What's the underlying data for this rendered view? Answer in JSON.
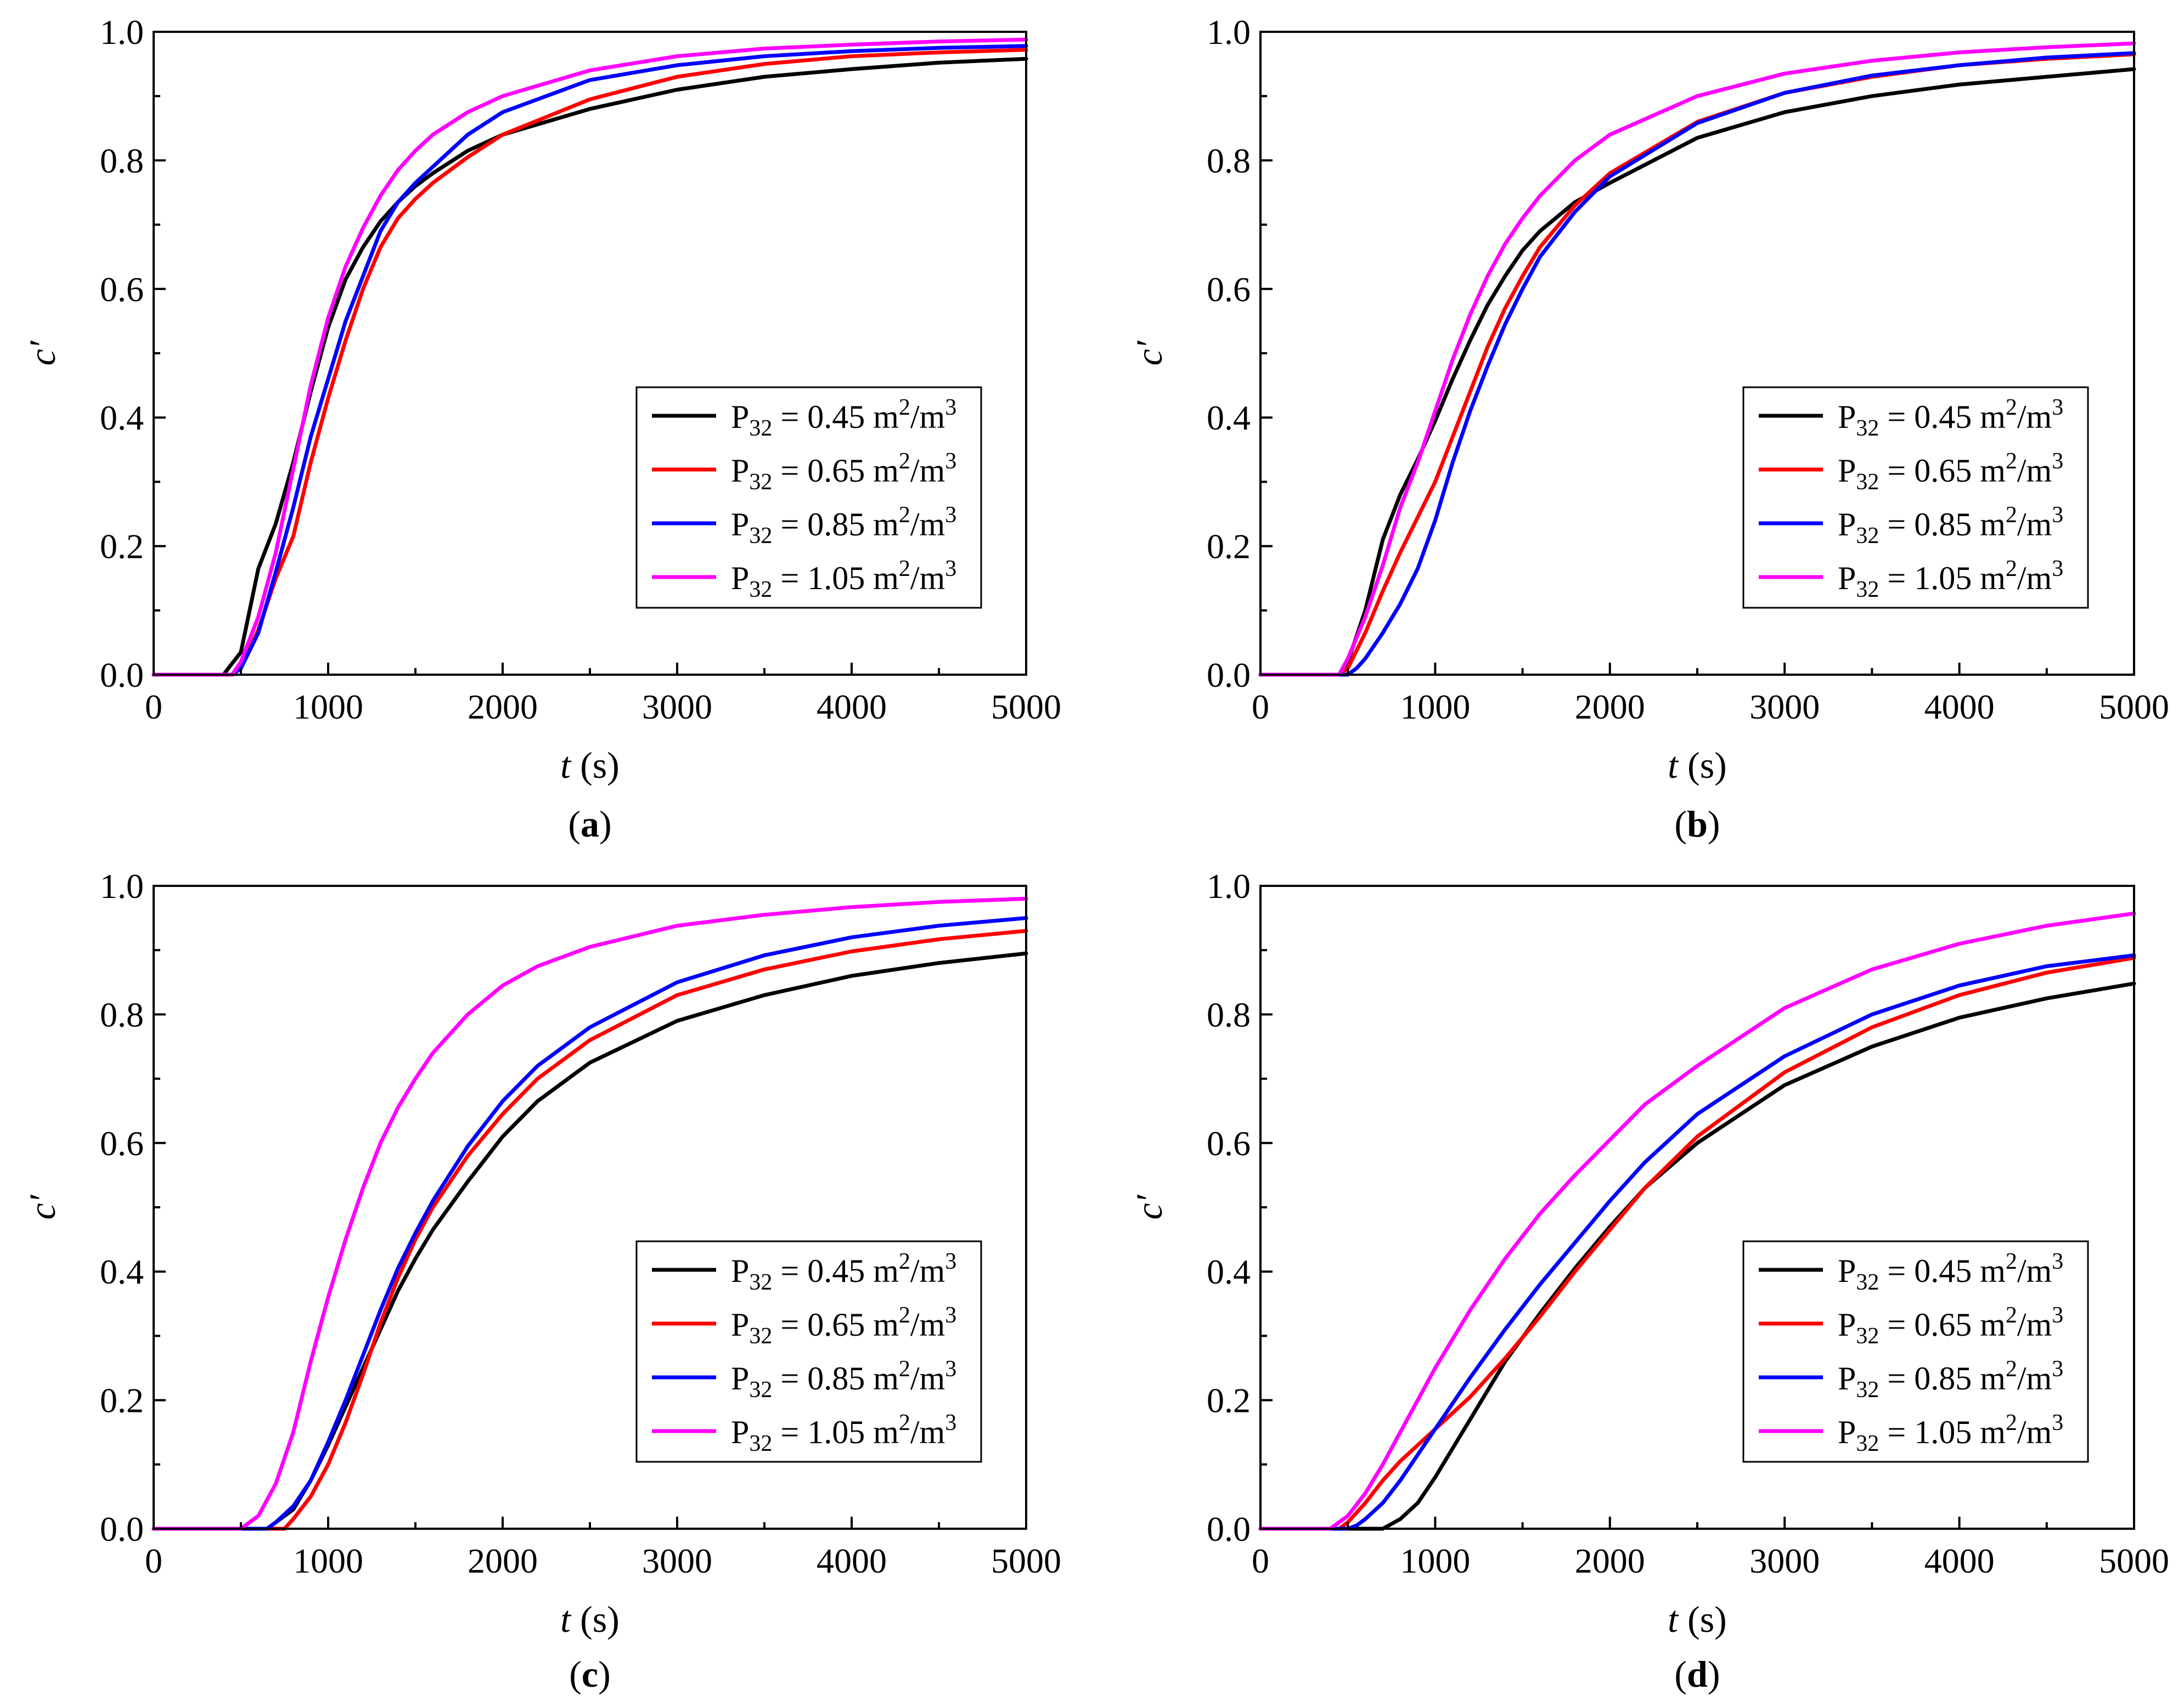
{
  "figure_colors": {
    "black": "#000000",
    "red": "#ff0000",
    "blue": "#0000ff",
    "magenta": "#ff00ff"
  },
  "legend_entries": [
    {
      "prefix": "P",
      "sub": "32",
      "mid": " = 0.45 m",
      "sup1": "2",
      "slash": "/m",
      "sup2": "3",
      "color": "#000000"
    },
    {
      "prefix": "P",
      "sub": "32",
      "mid": " = 0.65 m",
      "sup1": "2",
      "slash": "/m",
      "sup2": "3",
      "color": "#ff0000"
    },
    {
      "prefix": "P",
      "sub": "32",
      "mid": " = 0.85 m",
      "sup1": "2",
      "slash": "/m",
      "sup2": "3",
      "color": "#0000ff"
    },
    {
      "prefix": "P",
      "sub": "32",
      "mid": " = 1.05 m",
      "sup1": "2",
      "slash": "/m",
      "sup2": "3",
      "color": "#ff00ff"
    }
  ],
  "axis_text": {
    "x_italic": "t",
    "x_unit": " (s)",
    "y_label": "c′"
  },
  "chart_data": [
    {
      "type": "line",
      "panel": "a",
      "label_open": "(",
      "label_letter": "a",
      "label_close": ")",
      "xlabel": "t (s)",
      "ylabel": "c′",
      "xlim": [
        0,
        5000
      ],
      "ylim": [
        0,
        1.0
      ],
      "xticks": [
        "0",
        "1000",
        "2000",
        "3000",
        "4000",
        "5000"
      ],
      "yticks": [
        "0.0",
        "0.2",
        "0.4",
        "0.6",
        "0.8",
        "1.0"
      ],
      "legend_position": "center-right",
      "series": [
        {
          "name": "P32 = 0.45 m2/m3",
          "color": "#000000",
          "x": [
            0,
            400,
            500,
            600,
            700,
            800,
            900,
            1000,
            1100,
            1200,
            1300,
            1400,
            1500,
            1600,
            1800,
            2000,
            2500,
            3000,
            3500,
            4000,
            4500,
            5000
          ],
          "y": [
            0,
            0,
            0.035,
            0.165,
            0.235,
            0.33,
            0.44,
            0.54,
            0.615,
            0.665,
            0.705,
            0.735,
            0.76,
            0.78,
            0.815,
            0.84,
            0.88,
            0.91,
            0.93,
            0.942,
            0.952,
            0.958
          ]
        },
        {
          "name": "P32 = 0.65 m2/m3",
          "color": "#ff0000",
          "x": [
            0,
            450,
            500,
            600,
            700,
            800,
            900,
            1000,
            1100,
            1200,
            1300,
            1400,
            1500,
            1600,
            1800,
            2000,
            2500,
            3000,
            3500,
            4000,
            4500,
            5000
          ],
          "y": [
            0,
            0,
            0.01,
            0.07,
            0.15,
            0.215,
            0.33,
            0.43,
            0.52,
            0.6,
            0.665,
            0.71,
            0.74,
            0.765,
            0.805,
            0.84,
            0.895,
            0.93,
            0.95,
            0.962,
            0.968,
            0.972
          ]
        },
        {
          "name": "P32 = 0.85 m2/m3",
          "color": "#0000ff",
          "x": [
            0,
            450,
            500,
            600,
            700,
            800,
            900,
            1000,
            1100,
            1200,
            1300,
            1400,
            1500,
            1600,
            1800,
            2000,
            2500,
            3000,
            3500,
            4000,
            4500,
            5000
          ],
          "y": [
            0,
            0,
            0.01,
            0.065,
            0.16,
            0.26,
            0.37,
            0.46,
            0.55,
            0.62,
            0.69,
            0.735,
            0.765,
            0.79,
            0.84,
            0.875,
            0.925,
            0.948,
            0.962,
            0.97,
            0.975,
            0.978
          ]
        },
        {
          "name": "P32 = 1.05 m2/m3",
          "color": "#ff00ff",
          "x": [
            0,
            450,
            500,
            600,
            700,
            800,
            900,
            1000,
            1100,
            1200,
            1300,
            1400,
            1500,
            1600,
            1800,
            2000,
            2500,
            3000,
            3500,
            4000,
            4500,
            5000
          ],
          "y": [
            0,
            0,
            0.02,
            0.09,
            0.19,
            0.32,
            0.45,
            0.555,
            0.635,
            0.695,
            0.745,
            0.785,
            0.815,
            0.84,
            0.875,
            0.9,
            0.94,
            0.962,
            0.974,
            0.98,
            0.985,
            0.988
          ]
        }
      ]
    },
    {
      "type": "line",
      "panel": "b",
      "label_open": "(",
      "label_letter": "b",
      "label_close": ")",
      "xlabel": "t (s)",
      "ylabel": "c′",
      "xlim": [
        0,
        5000
      ],
      "ylim": [
        0,
        1.0
      ],
      "xticks": [
        "0",
        "1000",
        "2000",
        "3000",
        "4000",
        "5000"
      ],
      "yticks": [
        "0.0",
        "0.2",
        "0.4",
        "0.6",
        "0.8",
        "1.0"
      ],
      "legend_position": "center-right",
      "series": [
        {
          "name": "P32 = 0.45 m2/m3",
          "color": "#000000",
          "x": [
            0,
            450,
            500,
            600,
            700,
            800,
            900,
            1000,
            1100,
            1200,
            1300,
            1400,
            1500,
            1600,
            1800,
            2000,
            2500,
            3000,
            3500,
            4000,
            4500,
            5000
          ],
          "y": [
            0,
            0,
            0.02,
            0.1,
            0.21,
            0.28,
            0.335,
            0.395,
            0.46,
            0.52,
            0.575,
            0.62,
            0.66,
            0.69,
            0.735,
            0.765,
            0.835,
            0.875,
            0.9,
            0.918,
            0.93,
            0.942
          ]
        },
        {
          "name": "P32 = 0.65 m2/m3",
          "color": "#ff0000",
          "x": [
            0,
            450,
            500,
            600,
            700,
            800,
            900,
            1000,
            1100,
            1200,
            1300,
            1400,
            1500,
            1600,
            1800,
            2000,
            2500,
            3000,
            3500,
            4000,
            4500,
            5000
          ],
          "y": [
            0,
            0,
            0.01,
            0.065,
            0.13,
            0.19,
            0.245,
            0.3,
            0.37,
            0.44,
            0.51,
            0.57,
            0.62,
            0.665,
            0.73,
            0.78,
            0.86,
            0.905,
            0.93,
            0.948,
            0.958,
            0.965
          ]
        },
        {
          "name": "P32 = 0.85 m2/m3",
          "color": "#0000ff",
          "x": [
            0,
            500,
            550,
            600,
            700,
            800,
            900,
            1000,
            1100,
            1200,
            1300,
            1400,
            1500,
            1600,
            1800,
            2000,
            2500,
            3000,
            3500,
            4000,
            4500,
            5000
          ],
          "y": [
            0,
            0,
            0.01,
            0.025,
            0.065,
            0.11,
            0.165,
            0.24,
            0.33,
            0.41,
            0.48,
            0.545,
            0.6,
            0.65,
            0.72,
            0.775,
            0.858,
            0.905,
            0.932,
            0.948,
            0.96,
            0.967
          ]
        },
        {
          "name": "P32 = 1.05 m2/m3",
          "color": "#ff00ff",
          "x": [
            0,
            450,
            500,
            600,
            700,
            800,
            900,
            1000,
            1100,
            1200,
            1300,
            1400,
            1500,
            1600,
            1800,
            2000,
            2500,
            3000,
            3500,
            4000,
            4500,
            5000
          ],
          "y": [
            0,
            0,
            0.025,
            0.09,
            0.17,
            0.26,
            0.33,
            0.41,
            0.49,
            0.56,
            0.62,
            0.67,
            0.71,
            0.745,
            0.8,
            0.84,
            0.9,
            0.935,
            0.955,
            0.968,
            0.976,
            0.982
          ]
        }
      ]
    },
    {
      "type": "line",
      "panel": "c",
      "label_open": "(",
      "label_letter": "c",
      "label_close": ")",
      "xlabel": "t (s)",
      "ylabel": "c′",
      "xlim": [
        0,
        5000
      ],
      "ylim": [
        0,
        1.0
      ],
      "xticks": [
        "0",
        "1000",
        "2000",
        "3000",
        "4000",
        "5000"
      ],
      "yticks": [
        "0.0",
        "0.2",
        "0.4",
        "0.6",
        "0.8",
        "1.0"
      ],
      "legend_position": "center-right",
      "series": [
        {
          "name": "P32 = 0.45 m2/m3",
          "color": "#000000",
          "x": [
            0,
            650,
            700,
            800,
            900,
            1000,
            1100,
            1200,
            1300,
            1400,
            1500,
            1600,
            1800,
            2000,
            2200,
            2500,
            3000,
            3500,
            4000,
            4500,
            5000
          ],
          "y": [
            0,
            0,
            0.01,
            0.03,
            0.075,
            0.13,
            0.19,
            0.25,
            0.31,
            0.37,
            0.42,
            0.465,
            0.54,
            0.61,
            0.665,
            0.725,
            0.79,
            0.83,
            0.86,
            0.88,
            0.895
          ]
        },
        {
          "name": "P32 = 0.65 m2/m3",
          "color": "#ff0000",
          "x": [
            0,
            750,
            800,
            900,
            1000,
            1100,
            1200,
            1300,
            1400,
            1500,
            1600,
            1800,
            2000,
            2200,
            2500,
            3000,
            3500,
            4000,
            4500,
            5000
          ],
          "y": [
            0,
            0,
            0.015,
            0.05,
            0.1,
            0.165,
            0.24,
            0.32,
            0.39,
            0.45,
            0.5,
            0.58,
            0.645,
            0.7,
            0.76,
            0.83,
            0.87,
            0.898,
            0.917,
            0.93
          ]
        },
        {
          "name": "P32 = 0.85 m2/m3",
          "color": "#0000ff",
          "x": [
            0,
            650,
            700,
            800,
            900,
            1000,
            1100,
            1200,
            1300,
            1400,
            1500,
            1600,
            1800,
            2000,
            2200,
            2500,
            3000,
            3500,
            4000,
            4500,
            5000
          ],
          "y": [
            0,
            0,
            0.01,
            0.035,
            0.075,
            0.135,
            0.2,
            0.27,
            0.34,
            0.405,
            0.46,
            0.51,
            0.595,
            0.665,
            0.72,
            0.78,
            0.85,
            0.892,
            0.92,
            0.938,
            0.95
          ]
        },
        {
          "name": "P32 = 1.05 m2/m3",
          "color": "#ff00ff",
          "x": [
            0,
            500,
            550,
            600,
            700,
            800,
            900,
            1000,
            1100,
            1200,
            1300,
            1400,
            1500,
            1600,
            1800,
            2000,
            2200,
            2500,
            3000,
            3500,
            4000,
            4500,
            5000
          ],
          "y": [
            0,
            0,
            0.01,
            0.02,
            0.07,
            0.15,
            0.26,
            0.36,
            0.45,
            0.53,
            0.6,
            0.655,
            0.7,
            0.74,
            0.8,
            0.845,
            0.875,
            0.905,
            0.938,
            0.955,
            0.967,
            0.975,
            0.98
          ]
        }
      ]
    },
    {
      "type": "line",
      "panel": "d",
      "label_open": "(",
      "label_letter": "d",
      "label_close": ")",
      "xlabel": "t (s)",
      "ylabel": "c′",
      "xlim": [
        0,
        5000
      ],
      "ylim": [
        0,
        1.0
      ],
      "xticks": [
        "0",
        "1000",
        "2000",
        "3000",
        "4000",
        "5000"
      ],
      "yticks": [
        "0.0",
        "0.2",
        "0.4",
        "0.6",
        "0.8",
        "1.0"
      ],
      "legend_position": "center-right",
      "series": [
        {
          "name": "P32 = 0.45 m2/m3",
          "color": "#000000",
          "x": [
            0,
            700,
            800,
            900,
            1000,
            1100,
            1200,
            1400,
            1600,
            1800,
            2000,
            2200,
            2500,
            3000,
            3500,
            4000,
            4500,
            5000
          ],
          "y": [
            0,
            0,
            0.015,
            0.04,
            0.08,
            0.125,
            0.17,
            0.26,
            0.335,
            0.405,
            0.47,
            0.53,
            0.6,
            0.69,
            0.75,
            0.795,
            0.825,
            0.848
          ]
        },
        {
          "name": "P32 = 0.65 m2/m3",
          "color": "#ff0000",
          "x": [
            0,
            450,
            500,
            600,
            700,
            800,
            900,
            1000,
            1100,
            1200,
            1400,
            1600,
            1800,
            2000,
            2200,
            2500,
            3000,
            3500,
            4000,
            4500,
            5000
          ],
          "y": [
            0,
            0,
            0.01,
            0.04,
            0.075,
            0.105,
            0.13,
            0.155,
            0.18,
            0.205,
            0.265,
            0.33,
            0.4,
            0.465,
            0.53,
            0.61,
            0.71,
            0.78,
            0.83,
            0.865,
            0.888
          ]
        },
        {
          "name": "P32 = 0.85 m2/m3",
          "color": "#0000ff",
          "x": [
            0,
            500,
            550,
            600,
            700,
            800,
            900,
            1000,
            1100,
            1200,
            1400,
            1600,
            1800,
            2000,
            2200,
            2500,
            3000,
            3500,
            4000,
            4500,
            5000
          ],
          "y": [
            0,
            0,
            0.005,
            0.015,
            0.04,
            0.075,
            0.115,
            0.155,
            0.195,
            0.235,
            0.31,
            0.38,
            0.445,
            0.51,
            0.57,
            0.645,
            0.735,
            0.8,
            0.845,
            0.875,
            0.892
          ]
        },
        {
          "name": "P32 = 1.05 m2/m3",
          "color": "#ff00ff",
          "x": [
            0,
            400,
            500,
            600,
            700,
            800,
            900,
            1000,
            1100,
            1200,
            1400,
            1600,
            1800,
            2000,
            2200,
            2500,
            3000,
            3500,
            4000,
            4500,
            5000
          ],
          "y": [
            0,
            0,
            0.02,
            0.055,
            0.1,
            0.15,
            0.2,
            0.25,
            0.295,
            0.34,
            0.42,
            0.49,
            0.55,
            0.605,
            0.66,
            0.72,
            0.81,
            0.87,
            0.91,
            0.938,
            0.957
          ]
        }
      ]
    }
  ]
}
